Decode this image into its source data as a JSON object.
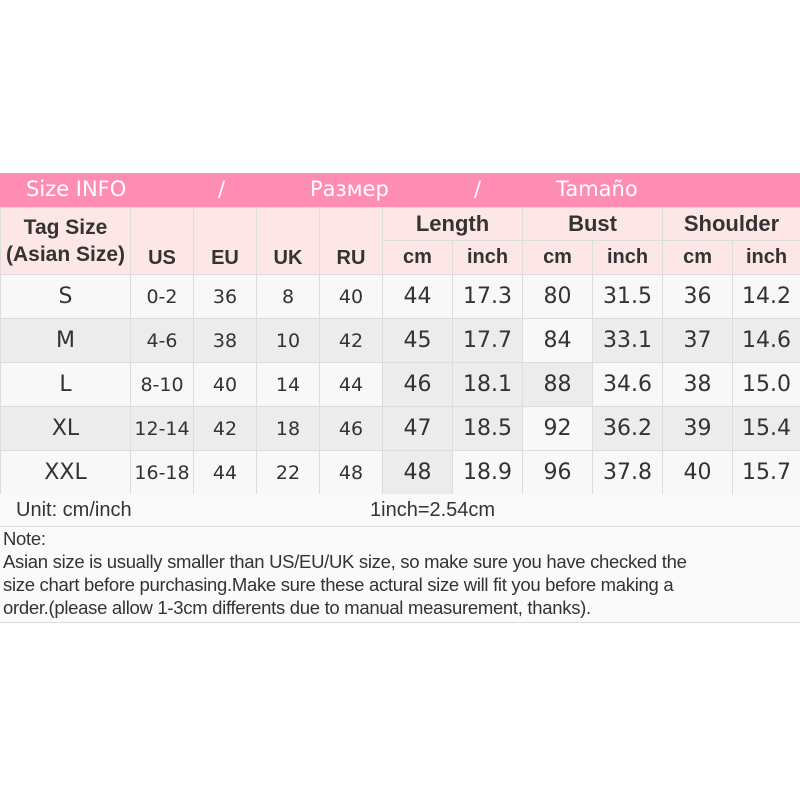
{
  "banner": {
    "left": "Size INFO",
    "sep1": "/",
    "middle": "Размер",
    "sep2": "/",
    "right": "Tamaño",
    "color": "#ff8cb3"
  },
  "header": {
    "tag_size_line1": "Tag Size",
    "tag_size_line2": "(Asian Size)",
    "us": "US",
    "eu": "EU",
    "uk": "UK",
    "ru": "RU",
    "groups": [
      "Length",
      "Bust",
      "Shoulder"
    ],
    "units": [
      "cm",
      "inch",
      "cm",
      "inch",
      "cm",
      "inch"
    ]
  },
  "rows": [
    [
      "S",
      "0-2",
      "36",
      "8",
      "40",
      "44",
      "17.3",
      "80",
      "31.5",
      "36",
      "14.2"
    ],
    [
      "M",
      "4-6",
      "38",
      "10",
      "42",
      "45",
      "17.7",
      "84",
      "33.1",
      "37",
      "14.6"
    ],
    [
      "L",
      "8-10",
      "40",
      "14",
      "44",
      "46",
      "18.1",
      "88",
      "34.6",
      "38",
      "15.0"
    ],
    [
      "XL",
      "12-14",
      "42",
      "18",
      "46",
      "47",
      "18.5",
      "92",
      "36.2",
      "39",
      "15.4"
    ],
    [
      "XXL",
      "16-18",
      "44",
      "22",
      "48",
      "48",
      "18.9",
      "96",
      "37.8",
      "40",
      "15.7"
    ]
  ],
  "unit": {
    "label": "Unit: cm/inch",
    "conversion": "1inch=2.54cm"
  },
  "note": {
    "title": "Note:",
    "lines": [
      "Asian size is usually smaller than US/EU/UK size, so make sure you have checked the",
      "size chart before purchasing.Make sure these actural size will fit you before making a",
      "order.(please allow 1-3cm differents due to manual measurement, thanks)."
    ]
  }
}
